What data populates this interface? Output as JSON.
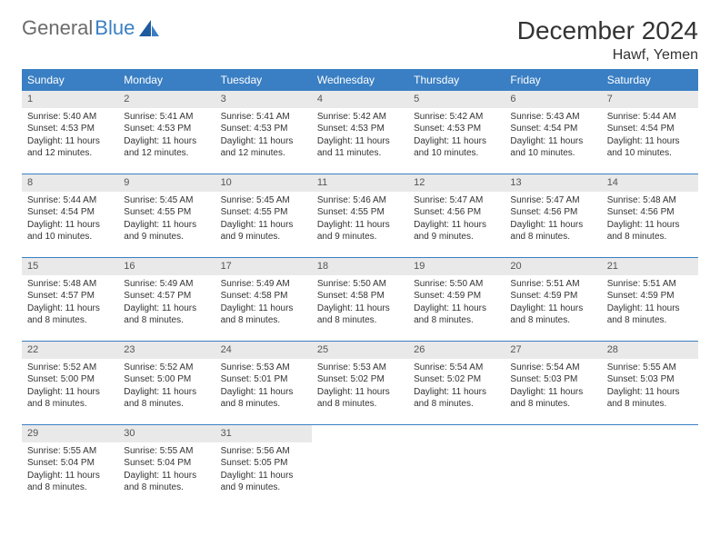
{
  "logo": {
    "text1": "General",
    "text2": "Blue"
  },
  "title": "December 2024",
  "location": "Hawf, Yemen",
  "colors": {
    "header_bg": "#3a7fc3",
    "header_text": "#ffffff",
    "daynum_bg": "#e9e9e9",
    "border": "#3a7fc3",
    "logo_gray": "#6b6b6b",
    "logo_blue": "#3a7fc3"
  },
  "weekdays": [
    "Sunday",
    "Monday",
    "Tuesday",
    "Wednesday",
    "Thursday",
    "Friday",
    "Saturday"
  ],
  "weeks": [
    [
      {
        "n": "1",
        "sr": "Sunrise: 5:40 AM",
        "ss": "Sunset: 4:53 PM",
        "dl": "Daylight: 11 hours and 12 minutes."
      },
      {
        "n": "2",
        "sr": "Sunrise: 5:41 AM",
        "ss": "Sunset: 4:53 PM",
        "dl": "Daylight: 11 hours and 12 minutes."
      },
      {
        "n": "3",
        "sr": "Sunrise: 5:41 AM",
        "ss": "Sunset: 4:53 PM",
        "dl": "Daylight: 11 hours and 12 minutes."
      },
      {
        "n": "4",
        "sr": "Sunrise: 5:42 AM",
        "ss": "Sunset: 4:53 PM",
        "dl": "Daylight: 11 hours and 11 minutes."
      },
      {
        "n": "5",
        "sr": "Sunrise: 5:42 AM",
        "ss": "Sunset: 4:53 PM",
        "dl": "Daylight: 11 hours and 10 minutes."
      },
      {
        "n": "6",
        "sr": "Sunrise: 5:43 AM",
        "ss": "Sunset: 4:54 PM",
        "dl": "Daylight: 11 hours and 10 minutes."
      },
      {
        "n": "7",
        "sr": "Sunrise: 5:44 AM",
        "ss": "Sunset: 4:54 PM",
        "dl": "Daylight: 11 hours and 10 minutes."
      }
    ],
    [
      {
        "n": "8",
        "sr": "Sunrise: 5:44 AM",
        "ss": "Sunset: 4:54 PM",
        "dl": "Daylight: 11 hours and 10 minutes."
      },
      {
        "n": "9",
        "sr": "Sunrise: 5:45 AM",
        "ss": "Sunset: 4:55 PM",
        "dl": "Daylight: 11 hours and 9 minutes."
      },
      {
        "n": "10",
        "sr": "Sunrise: 5:45 AM",
        "ss": "Sunset: 4:55 PM",
        "dl": "Daylight: 11 hours and 9 minutes."
      },
      {
        "n": "11",
        "sr": "Sunrise: 5:46 AM",
        "ss": "Sunset: 4:55 PM",
        "dl": "Daylight: 11 hours and 9 minutes."
      },
      {
        "n": "12",
        "sr": "Sunrise: 5:47 AM",
        "ss": "Sunset: 4:56 PM",
        "dl": "Daylight: 11 hours and 9 minutes."
      },
      {
        "n": "13",
        "sr": "Sunrise: 5:47 AM",
        "ss": "Sunset: 4:56 PM",
        "dl": "Daylight: 11 hours and 8 minutes."
      },
      {
        "n": "14",
        "sr": "Sunrise: 5:48 AM",
        "ss": "Sunset: 4:56 PM",
        "dl": "Daylight: 11 hours and 8 minutes."
      }
    ],
    [
      {
        "n": "15",
        "sr": "Sunrise: 5:48 AM",
        "ss": "Sunset: 4:57 PM",
        "dl": "Daylight: 11 hours and 8 minutes."
      },
      {
        "n": "16",
        "sr": "Sunrise: 5:49 AM",
        "ss": "Sunset: 4:57 PM",
        "dl": "Daylight: 11 hours and 8 minutes."
      },
      {
        "n": "17",
        "sr": "Sunrise: 5:49 AM",
        "ss": "Sunset: 4:58 PM",
        "dl": "Daylight: 11 hours and 8 minutes."
      },
      {
        "n": "18",
        "sr": "Sunrise: 5:50 AM",
        "ss": "Sunset: 4:58 PM",
        "dl": "Daylight: 11 hours and 8 minutes."
      },
      {
        "n": "19",
        "sr": "Sunrise: 5:50 AM",
        "ss": "Sunset: 4:59 PM",
        "dl": "Daylight: 11 hours and 8 minutes."
      },
      {
        "n": "20",
        "sr": "Sunrise: 5:51 AM",
        "ss": "Sunset: 4:59 PM",
        "dl": "Daylight: 11 hours and 8 minutes."
      },
      {
        "n": "21",
        "sr": "Sunrise: 5:51 AM",
        "ss": "Sunset: 4:59 PM",
        "dl": "Daylight: 11 hours and 8 minutes."
      }
    ],
    [
      {
        "n": "22",
        "sr": "Sunrise: 5:52 AM",
        "ss": "Sunset: 5:00 PM",
        "dl": "Daylight: 11 hours and 8 minutes."
      },
      {
        "n": "23",
        "sr": "Sunrise: 5:52 AM",
        "ss": "Sunset: 5:00 PM",
        "dl": "Daylight: 11 hours and 8 minutes."
      },
      {
        "n": "24",
        "sr": "Sunrise: 5:53 AM",
        "ss": "Sunset: 5:01 PM",
        "dl": "Daylight: 11 hours and 8 minutes."
      },
      {
        "n": "25",
        "sr": "Sunrise: 5:53 AM",
        "ss": "Sunset: 5:02 PM",
        "dl": "Daylight: 11 hours and 8 minutes."
      },
      {
        "n": "26",
        "sr": "Sunrise: 5:54 AM",
        "ss": "Sunset: 5:02 PM",
        "dl": "Daylight: 11 hours and 8 minutes."
      },
      {
        "n": "27",
        "sr": "Sunrise: 5:54 AM",
        "ss": "Sunset: 5:03 PM",
        "dl": "Daylight: 11 hours and 8 minutes."
      },
      {
        "n": "28",
        "sr": "Sunrise: 5:55 AM",
        "ss": "Sunset: 5:03 PM",
        "dl": "Daylight: 11 hours and 8 minutes."
      }
    ],
    [
      {
        "n": "29",
        "sr": "Sunrise: 5:55 AM",
        "ss": "Sunset: 5:04 PM",
        "dl": "Daylight: 11 hours and 8 minutes."
      },
      {
        "n": "30",
        "sr": "Sunrise: 5:55 AM",
        "ss": "Sunset: 5:04 PM",
        "dl": "Daylight: 11 hours and 8 minutes."
      },
      {
        "n": "31",
        "sr": "Sunrise: 5:56 AM",
        "ss": "Sunset: 5:05 PM",
        "dl": "Daylight: 11 hours and 9 minutes."
      },
      null,
      null,
      null,
      null
    ]
  ]
}
